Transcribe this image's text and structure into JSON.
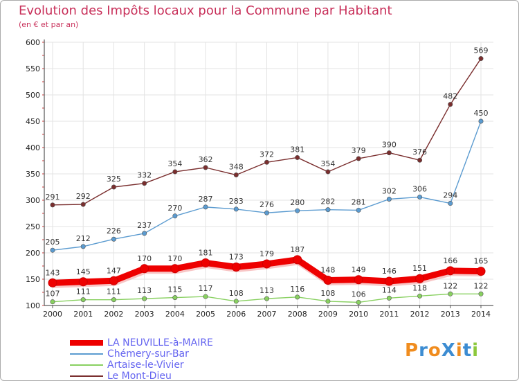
{
  "title": "Evolution des Impôts locaux pour la Commune par Habitant",
  "subtitle": "(en € et par an)",
  "logo_text": "ProXiti",
  "colors": {
    "title": "#c8305a",
    "legend_text": "#6464f0",
    "grid": "#e3e3e3",
    "axis": "#333333"
  },
  "chart_data": {
    "type": "line",
    "x": [
      "2000",
      "2001",
      "2002",
      "2003",
      "2004",
      "2005",
      "2006",
      "2007",
      "2008",
      "2009",
      "2010",
      "2011",
      "2012",
      "2013",
      "2014"
    ],
    "ylim": [
      100,
      600
    ],
    "yticks": [
      100,
      150,
      200,
      250,
      300,
      350,
      400,
      450,
      500,
      550,
      600
    ],
    "grid": true,
    "legend_position": "bottom-left",
    "series": [
      {
        "name": "LA NEUVILLE-à-MAIRE",
        "color": "#ee0000",
        "values": [
          143,
          145,
          147,
          170,
          170,
          181,
          173,
          179,
          187,
          148,
          149,
          146,
          151,
          166,
          165
        ]
      },
      {
        "name": "Chémery-sur-Bar",
        "color": "#5b9bd0",
        "values": [
          205,
          212,
          226,
          237,
          270,
          287,
          283,
          276,
          280,
          282,
          281,
          302,
          306,
          294,
          450
        ]
      },
      {
        "name": "Artaise-le-Vivier",
        "color": "#88d060",
        "values": [
          107,
          111,
          111,
          113,
          115,
          117,
          108,
          113,
          116,
          108,
          106,
          114,
          118,
          122,
          122
        ]
      },
      {
        "name": "Le Mont-Dieu",
        "color": "#7a2e2e",
        "values": [
          291,
          292,
          325,
          332,
          354,
          362,
          348,
          372,
          381,
          354,
          379,
          390,
          376,
          482,
          569
        ]
      }
    ]
  }
}
